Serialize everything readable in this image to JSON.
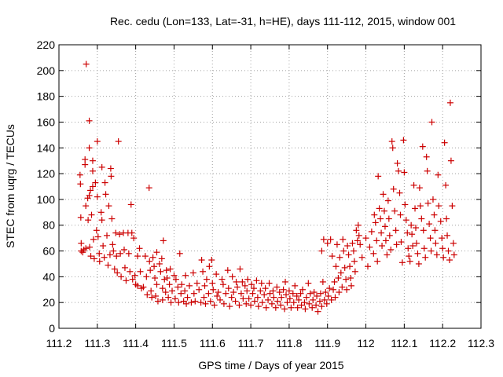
{
  "chart_data": {
    "type": "scatter",
    "title": "Rec. cedu (Lon=133, Lat=-31, h=HE), days 111-112, 2015, window 001",
    "xlabel": "GPS time / Days of year 2015",
    "ylabel": "STEC from uqrg / TECUs",
    "xlim": [
      111.2,
      112.3
    ],
    "ylim": [
      0,
      220
    ],
    "x_ticks": [
      "111.2",
      "111.3",
      "111.4",
      "111.5",
      "111.6",
      "111.7",
      "111.8",
      "111.9",
      "112",
      "112.1",
      "112.2",
      "112.3"
    ],
    "y_ticks": [
      "0",
      "20",
      "40",
      "60",
      "80",
      "100",
      "120",
      "140",
      "160",
      "180",
      "200",
      "220"
    ],
    "grid": true,
    "marker": "+",
    "color": "#cc0000",
    "points": [
      [
        111.255,
        119
      ],
      [
        111.256,
        112
      ],
      [
        111.257,
        86
      ],
      [
        111.258,
        66
      ],
      [
        111.258,
        60
      ],
      [
        111.262,
        59
      ],
      [
        111.265,
        61
      ],
      [
        111.268,
        131
      ],
      [
        111.268,
        127
      ],
      [
        111.27,
        95
      ],
      [
        111.27,
        62
      ],
      [
        111.271,
        205
      ],
      [
        111.275,
        101
      ],
      [
        111.276,
        84
      ],
      [
        111.279,
        161
      ],
      [
        111.279,
        140
      ],
      [
        111.279,
        103
      ],
      [
        111.28,
        63
      ],
      [
        111.282,
        107
      ],
      [
        111.283,
        56
      ],
      [
        111.285,
        88
      ],
      [
        111.288,
        130
      ],
      [
        111.288,
        122
      ],
      [
        111.288,
        110
      ],
      [
        111.29,
        69
      ],
      [
        111.292,
        54
      ],
      [
        111.295,
        113
      ],
      [
        111.298,
        76
      ],
      [
        111.3,
        145
      ],
      [
        111.3,
        102
      ],
      [
        111.302,
        71
      ],
      [
        111.305,
        58
      ],
      [
        111.306,
        52
      ],
      [
        111.31,
        90
      ],
      [
        111.312,
        125
      ],
      [
        111.312,
        84
      ],
      [
        111.315,
        64
      ],
      [
        111.318,
        55
      ],
      [
        111.32,
        113
      ],
      [
        111.322,
        104
      ],
      [
        111.325,
        72
      ],
      [
        111.328,
        49
      ],
      [
        111.33,
        95
      ],
      [
        111.333,
        57
      ],
      [
        111.335,
        124
      ],
      [
        111.336,
        118
      ],
      [
        111.338,
        85
      ],
      [
        111.34,
        65
      ],
      [
        111.342,
        60
      ],
      [
        111.345,
        46
      ],
      [
        111.348,
        74
      ],
      [
        111.35,
        56
      ],
      [
        111.352,
        43
      ],
      [
        111.355,
        145
      ],
      [
        111.358,
        73
      ],
      [
        111.36,
        58
      ],
      [
        111.362,
        40
      ],
      [
        111.368,
        74
      ],
      [
        111.37,
        61
      ],
      [
        111.372,
        47
      ],
      [
        111.375,
        37
      ],
      [
        111.38,
        74
      ],
      [
        111.382,
        58
      ],
      [
        111.385,
        44
      ],
      [
        111.388,
        96
      ],
      [
        111.39,
        74
      ],
      [
        111.392,
        38
      ],
      [
        111.395,
        70
      ],
      [
        111.398,
        41
      ],
      [
        111.4,
        34
      ],
      [
        111.405,
        56
      ],
      [
        111.405,
        33
      ],
      [
        111.41,
        62
      ],
      [
        111.412,
        44
      ],
      [
        111.415,
        31
      ],
      [
        111.42,
        32
      ],
      [
        111.425,
        56
      ],
      [
        111.428,
        40
      ],
      [
        111.43,
        26
      ],
      [
        111.435,
        109
      ],
      [
        111.436,
        52
      ],
      [
        111.438,
        45
      ],
      [
        111.44,
        29
      ],
      [
        111.442,
        24
      ],
      [
        111.445,
        55
      ],
      [
        111.448,
        48
      ],
      [
        111.45,
        39
      ],
      [
        111.452,
        25
      ],
      [
        111.455,
        59
      ],
      [
        111.455,
        34
      ],
      [
        111.458,
        21
      ],
      [
        111.462,
        50
      ],
      [
        111.465,
        44
      ],
      [
        111.468,
        54
      ],
      [
        111.47,
        31
      ],
      [
        111.47,
        22
      ],
      [
        111.472,
        68
      ],
      [
        111.475,
        38
      ],
      [
        111.478,
        28
      ],
      [
        111.48,
        45
      ],
      [
        111.482,
        39
      ],
      [
        111.485,
        24
      ],
      [
        111.488,
        34
      ],
      [
        111.49,
        46
      ],
      [
        111.492,
        20
      ],
      [
        111.495,
        29
      ],
      [
        111.5,
        41
      ],
      [
        111.503,
        23
      ],
      [
        111.505,
        38
      ],
      [
        111.51,
        32
      ],
      [
        111.512,
        20
      ],
      [
        111.515,
        58
      ],
      [
        111.518,
        27
      ],
      [
        111.52,
        34
      ],
      [
        111.525,
        21
      ],
      [
        111.528,
        29
      ],
      [
        111.53,
        41
      ],
      [
        111.532,
        19
      ],
      [
        111.535,
        24
      ],
      [
        111.54,
        33
      ],
      [
        111.545,
        20
      ],
      [
        111.55,
        43
      ],
      [
        111.552,
        27
      ],
      [
        111.555,
        21
      ],
      [
        111.56,
        35
      ],
      [
        111.565,
        30
      ],
      [
        111.57,
        20
      ],
      [
        111.572,
        53
      ],
      [
        111.575,
        44
      ],
      [
        111.578,
        24
      ],
      [
        111.58,
        33
      ],
      [
        111.582,
        19
      ],
      [
        111.585,
        38
      ],
      [
        111.59,
        27
      ],
      [
        111.592,
        48
      ],
      [
        111.595,
        21
      ],
      [
        111.598,
        53
      ],
      [
        111.6,
        35
      ],
      [
        111.602,
        30
      ],
      [
        111.605,
        18
      ],
      [
        111.61,
        42
      ],
      [
        111.612,
        25
      ],
      [
        111.615,
        28
      ],
      [
        111.62,
        22
      ],
      [
        111.625,
        38
      ],
      [
        111.628,
        34
      ],
      [
        111.63,
        19
      ],
      [
        111.635,
        27
      ],
      [
        111.64,
        45
      ],
      [
        111.642,
        31
      ],
      [
        111.645,
        17
      ],
      [
        111.65,
        24
      ],
      [
        111.652,
        40
      ],
      [
        111.655,
        28
      ],
      [
        111.66,
        21
      ],
      [
        111.662,
        36
      ],
      [
        111.665,
        32
      ],
      [
        111.67,
        18
      ],
      [
        111.672,
        46
      ],
      [
        111.675,
        27
      ],
      [
        111.678,
        36
      ],
      [
        111.68,
        23
      ],
      [
        111.685,
        33
      ],
      [
        111.688,
        19
      ],
      [
        111.69,
        29
      ],
      [
        111.692,
        38
      ],
      [
        111.695,
        23
      ],
      [
        111.7,
        18
      ],
      [
        111.702,
        34
      ],
      [
        111.705,
        27
      ],
      [
        111.708,
        31
      ],
      [
        111.71,
        21
      ],
      [
        111.715,
        37
      ],
      [
        111.718,
        24
      ],
      [
        111.72,
        17
      ],
      [
        111.725,
        29
      ],
      [
        111.728,
        35
      ],
      [
        111.73,
        20
      ],
      [
        111.735,
        26
      ],
      [
        111.738,
        31
      ],
      [
        111.74,
        16
      ],
      [
        111.745,
        22
      ],
      [
        111.748,
        35
      ],
      [
        111.75,
        27
      ],
      [
        111.755,
        19
      ],
      [
        111.758,
        29
      ],
      [
        111.76,
        24
      ],
      [
        111.765,
        16
      ],
      [
        111.768,
        32
      ],
      [
        111.77,
        21
      ],
      [
        111.775,
        28
      ],
      [
        111.778,
        18
      ],
      [
        111.78,
        24
      ],
      [
        111.785,
        30
      ],
      [
        111.788,
        15
      ],
      [
        111.79,
        36
      ],
      [
        111.792,
        26
      ],
      [
        111.795,
        20
      ],
      [
        111.8,
        29
      ],
      [
        111.802,
        23
      ],
      [
        111.805,
        16
      ],
      [
        111.81,
        27
      ],
      [
        111.812,
        20
      ],
      [
        111.815,
        33
      ],
      [
        111.82,
        25
      ],
      [
        111.822,
        16
      ],
      [
        111.825,
        22
      ],
      [
        111.83,
        27
      ],
      [
        111.832,
        18
      ],
      [
        111.835,
        30
      ],
      [
        111.84,
        20
      ],
      [
        111.842,
        15
      ],
      [
        111.845,
        24
      ],
      [
        111.85,
        35
      ],
      [
        111.852,
        19
      ],
      [
        111.855,
        27
      ],
      [
        111.86,
        16
      ],
      [
        111.862,
        22
      ],
      [
        111.865,
        28
      ],
      [
        111.87,
        18
      ],
      [
        111.872,
        25
      ],
      [
        111.875,
        13
      ],
      [
        111.88,
        21
      ],
      [
        111.882,
        27
      ],
      [
        111.885,
        60
      ],
      [
        111.885,
        17
      ],
      [
        111.888,
        36
      ],
      [
        111.89,
        69
      ],
      [
        111.892,
        22
      ],
      [
        111.895,
        28
      ],
      [
        111.898,
        19
      ],
      [
        111.9,
        66
      ],
      [
        111.902,
        25
      ],
      [
        111.905,
        31
      ],
      [
        111.908,
        69
      ],
      [
        111.91,
        22
      ],
      [
        111.912,
        56
      ],
      [
        111.915,
        30
      ],
      [
        111.918,
        36
      ],
      [
        111.92,
        24
      ],
      [
        111.922,
        48
      ],
      [
        111.925,
        65
      ],
      [
        111.928,
        39
      ],
      [
        111.93,
        28
      ],
      [
        111.932,
        55
      ],
      [
        111.935,
        43
      ],
      [
        111.938,
        32
      ],
      [
        111.94,
        69
      ],
      [
        111.942,
        60
      ],
      [
        111.945,
        47
      ],
      [
        111.948,
        38
      ],
      [
        111.95,
        30
      ],
      [
        111.952,
        64
      ],
      [
        111.955,
        57
      ],
      [
        111.958,
        48
      ],
      [
        111.96,
        39
      ],
      [
        111.962,
        33
      ],
      [
        111.965,
        66
      ],
      [
        111.968,
        60
      ],
      [
        111.97,
        52
      ],
      [
        111.972,
        44
      ],
      [
        111.975,
        76
      ],
      [
        111.978,
        68
      ],
      [
        111.98,
        80
      ],
      [
        111.982,
        72
      ],
      [
        111.985,
        65
      ],
      [
        111.99,
        55
      ],
      [
        112.0,
        70
      ],
      [
        112.005,
        48
      ],
      [
        112.01,
        63
      ],
      [
        112.015,
        75
      ],
      [
        112.02,
        58
      ],
      [
        112.022,
        88
      ],
      [
        112.025,
        82
      ],
      [
        112.028,
        68
      ],
      [
        112.03,
        52
      ],
      [
        112.032,
        118
      ],
      [
        112.035,
        93
      ],
      [
        112.038,
        85
      ],
      [
        112.04,
        74
      ],
      [
        112.042,
        64
      ],
      [
        112.045,
        104
      ],
      [
        112.048,
        91
      ],
      [
        112.05,
        79
      ],
      [
        112.052,
        68
      ],
      [
        112.055,
        57
      ],
      [
        112.058,
        99
      ],
      [
        112.06,
        85
      ],
      [
        112.062,
        72
      ],
      [
        112.065,
        61
      ],
      [
        112.068,
        145
      ],
      [
        112.07,
        140
      ],
      [
        112.072,
        108
      ],
      [
        112.075,
        91
      ],
      [
        112.078,
        76
      ],
      [
        112.08,
        65
      ],
      [
        112.082,
        128
      ],
      [
        112.085,
        122
      ],
      [
        112.088,
        105
      ],
      [
        112.09,
        88
      ],
      [
        112.092,
        67
      ],
      [
        112.095,
        51
      ],
      [
        112.098,
        146
      ],
      [
        112.1,
        121
      ],
      [
        112.102,
        96
      ],
      [
        112.105,
        84
      ],
      [
        112.108,
        74
      ],
      [
        112.11,
        62
      ],
      [
        112.112,
        56
      ],
      [
        112.115,
        52
      ],
      [
        112.118,
        80
      ],
      [
        112.12,
        73
      ],
      [
        112.122,
        64
      ],
      [
        112.125,
        111
      ],
      [
        112.128,
        93
      ],
      [
        112.13,
        78
      ],
      [
        112.132,
        66
      ],
      [
        112.135,
        58
      ],
      [
        112.138,
        50
      ],
      [
        112.14,
        109
      ],
      [
        112.142,
        95
      ],
      [
        112.145,
        85
      ],
      [
        112.148,
        141
      ],
      [
        112.15,
        76
      ],
      [
        112.152,
        62
      ],
      [
        112.155,
        55
      ],
      [
        112.158,
        133
      ],
      [
        112.16,
        122
      ],
      [
        112.162,
        97
      ],
      [
        112.165,
        81
      ],
      [
        112.168,
        70
      ],
      [
        112.17,
        60
      ],
      [
        112.172,
        160
      ],
      [
        112.175,
        100
      ],
      [
        112.178,
        88
      ],
      [
        112.18,
        76
      ],
      [
        112.182,
        66
      ],
      [
        112.185,
        57
      ],
      [
        112.188,
        119
      ],
      [
        112.19,
        95
      ],
      [
        112.195,
        83
      ],
      [
        112.198,
        70
      ],
      [
        112.2,
        62
      ],
      [
        112.202,
        55
      ],
      [
        112.205,
        144
      ],
      [
        112.208,
        111
      ],
      [
        112.21,
        85
      ],
      [
        112.212,
        72
      ],
      [
        112.215,
        60
      ],
      [
        112.218,
        53
      ],
      [
        112.22,
        175
      ],
      [
        112.222,
        130
      ],
      [
        112.225,
        95
      ],
      [
        112.228,
        66
      ],
      [
        112.23,
        57
      ]
    ]
  }
}
